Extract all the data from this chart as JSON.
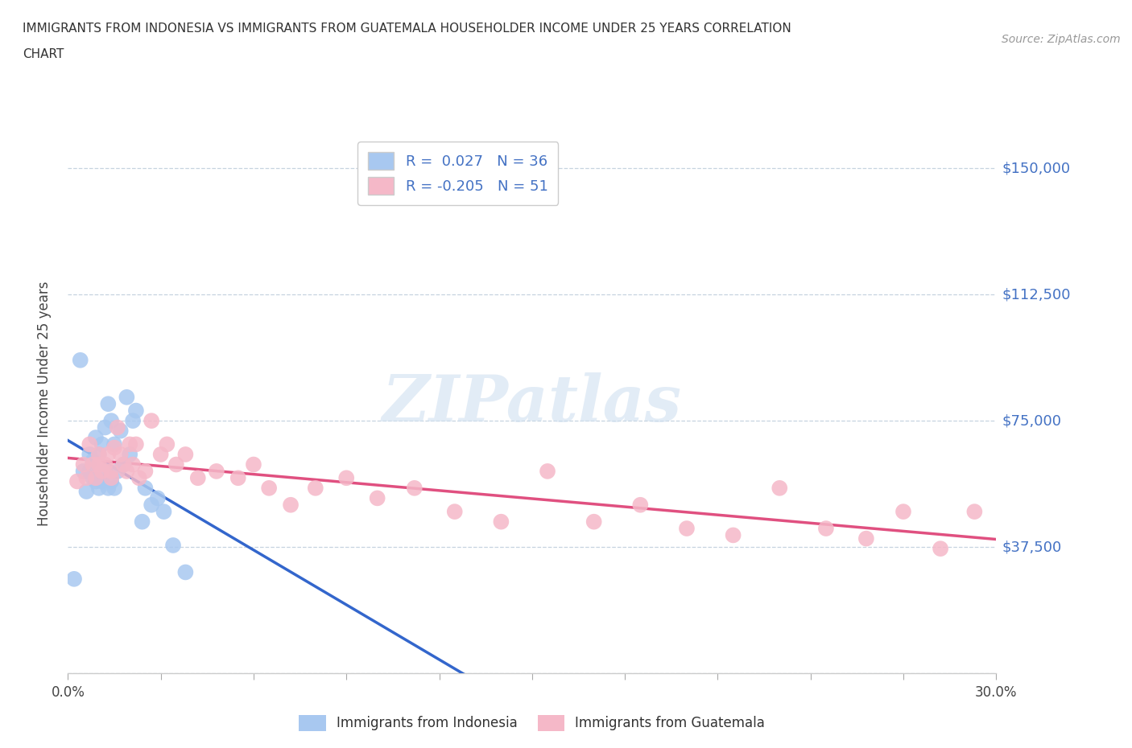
{
  "title_line1": "IMMIGRANTS FROM INDONESIA VS IMMIGRANTS FROM GUATEMALA HOUSEHOLDER INCOME UNDER 25 YEARS CORRELATION",
  "title_line2": "CHART",
  "source": "Source: ZipAtlas.com",
  "ylabel": "Householder Income Under 25 years",
  "xlim": [
    0.0,
    0.3
  ],
  "ylim": [
    0,
    160000
  ],
  "yticks": [
    0,
    37500,
    75000,
    112500,
    150000
  ],
  "ytick_labels": [
    "",
    "$37,500",
    "$75,000",
    "$112,500",
    "$150,000"
  ],
  "xticks": [
    0.0,
    0.03,
    0.06,
    0.09,
    0.12,
    0.15,
    0.18,
    0.21,
    0.24,
    0.27,
    0.3
  ],
  "xtick_labels": [
    "0.0%",
    "",
    "",
    "",
    "",
    "",
    "",
    "",
    "",
    "",
    "30.0%"
  ],
  "indonesia_color": "#a8c8f0",
  "guatemala_color": "#f5b8c8",
  "indonesia_line_color": "#3366cc",
  "guatemala_line_color": "#e05080",
  "indonesia_R": 0.027,
  "indonesia_N": 36,
  "guatemala_R": -0.205,
  "guatemala_N": 51,
  "watermark": "ZIPatlas",
  "indonesia_x": [
    0.002,
    0.004,
    0.005,
    0.006,
    0.007,
    0.007,
    0.008,
    0.008,
    0.009,
    0.009,
    0.01,
    0.01,
    0.011,
    0.011,
    0.012,
    0.012,
    0.013,
    0.013,
    0.014,
    0.014,
    0.015,
    0.015,
    0.016,
    0.017,
    0.018,
    0.019,
    0.02,
    0.021,
    0.022,
    0.024,
    0.025,
    0.027,
    0.029,
    0.031,
    0.034,
    0.038
  ],
  "indonesia_y": [
    28000,
    93000,
    60000,
    54000,
    60000,
    65000,
    58000,
    63000,
    57000,
    70000,
    55000,
    65000,
    57000,
    68000,
    60000,
    73000,
    55000,
    80000,
    57000,
    75000,
    55000,
    68000,
    60000,
    72000,
    62000,
    82000,
    65000,
    75000,
    78000,
    45000,
    55000,
    50000,
    52000,
    48000,
    38000,
    30000
  ],
  "guatemala_x": [
    0.003,
    0.005,
    0.006,
    0.007,
    0.008,
    0.009,
    0.01,
    0.01,
    0.011,
    0.012,
    0.013,
    0.014,
    0.014,
    0.015,
    0.016,
    0.017,
    0.018,
    0.019,
    0.02,
    0.021,
    0.022,
    0.023,
    0.025,
    0.027,
    0.03,
    0.032,
    0.035,
    0.038,
    0.042,
    0.048,
    0.055,
    0.06,
    0.065,
    0.072,
    0.08,
    0.09,
    0.1,
    0.112,
    0.125,
    0.14,
    0.155,
    0.17,
    0.185,
    0.2,
    0.215,
    0.23,
    0.245,
    0.258,
    0.27,
    0.282,
    0.293
  ],
  "guatemala_y": [
    57000,
    62000,
    58000,
    68000,
    62000,
    58000,
    65000,
    62000,
    60000,
    62000,
    65000,
    58000,
    60000,
    67000,
    73000,
    65000,
    62000,
    60000,
    68000,
    62000,
    68000,
    58000,
    60000,
    75000,
    65000,
    68000,
    62000,
    65000,
    58000,
    60000,
    58000,
    62000,
    55000,
    50000,
    55000,
    58000,
    52000,
    55000,
    48000,
    45000,
    60000,
    45000,
    50000,
    43000,
    41000,
    55000,
    43000,
    40000,
    48000,
    37000,
    48000
  ]
}
